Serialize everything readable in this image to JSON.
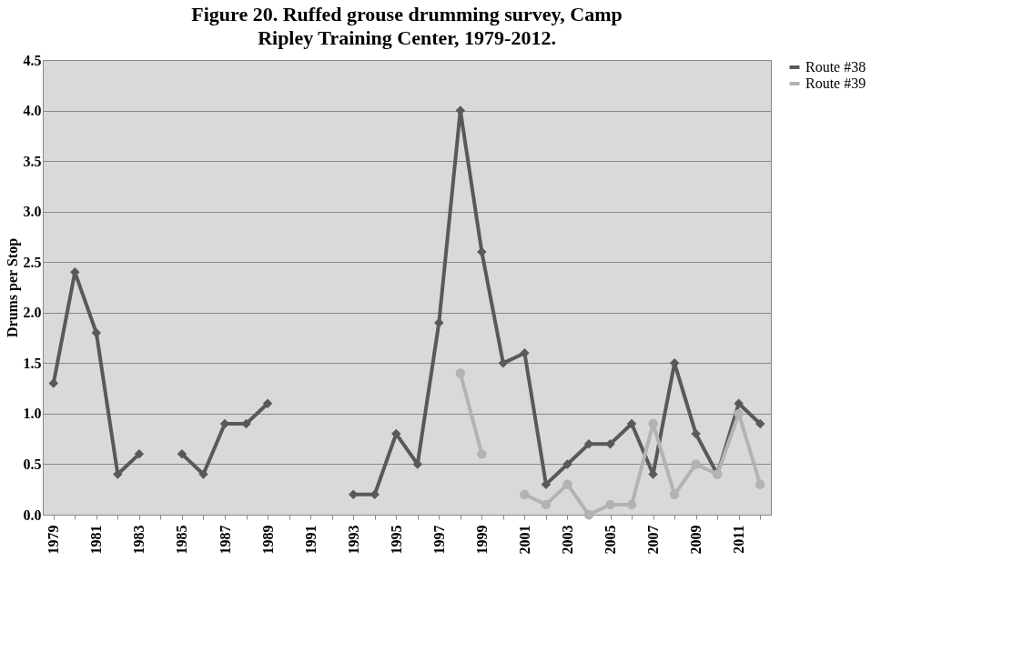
{
  "chart_data": {
    "type": "line",
    "title": "Figure 20.  Ruffed grouse drumming survey, Camp Ripley Training Center, 1979-2012.",
    "ylabel": "Drums per Stop",
    "categories": [
      "1979",
      null,
      "1981",
      null,
      "1983",
      null,
      "1985",
      null,
      "1987",
      null,
      "1989",
      null,
      "1991",
      null,
      "1993",
      null,
      "1995",
      null,
      "1997",
      null,
      "1999",
      null,
      "2001",
      null,
      "2003",
      null,
      "2005",
      null,
      "2007",
      null,
      "2009",
      null,
      "2011",
      null
    ],
    "series": [
      {
        "name": "Route #38",
        "color": "#595959",
        "marker": "diamond",
        "values": [
          1.3,
          2.4,
          1.8,
          0.4,
          0.6,
          null,
          0.6,
          0.4,
          0.9,
          0.9,
          1.1,
          null,
          null,
          null,
          0.2,
          0.2,
          0.8,
          0.5,
          1.9,
          4.0,
          2.6,
          1.5,
          1.6,
          0.3,
          0.5,
          0.7,
          0.7,
          0.9,
          0.4,
          1.5,
          0.8,
          0.4,
          1.1,
          0.9
        ]
      },
      {
        "name": "Route #39",
        "color": "#b3b3b3",
        "marker": "circle",
        "values": [
          null,
          null,
          null,
          null,
          null,
          null,
          null,
          null,
          null,
          null,
          null,
          null,
          null,
          null,
          null,
          null,
          null,
          null,
          null,
          1.4,
          0.6,
          null,
          0.2,
          0.1,
          0.3,
          0.0,
          0.1,
          0.1,
          0.9,
          0.2,
          0.5,
          0.4,
          1.0,
          0.3
        ]
      }
    ],
    "ylim": [
      0,
      4.5
    ],
    "yticks": [
      {
        "value": 0,
        "label": "0.0"
      },
      {
        "value": 0.5,
        "label": "0.5"
      },
      {
        "value": 1,
        "label": "1.0"
      },
      {
        "value": 1.5,
        "label": "1.5"
      },
      {
        "value": 2,
        "label": "2.0"
      },
      {
        "value": 2.5,
        "label": "2.5"
      },
      {
        "value": 3,
        "label": "3.0"
      },
      {
        "value": 3.5,
        "label": "3.5"
      },
      {
        "value": 4,
        "label": "4.0"
      },
      {
        "value": 4.5,
        "label": "4.5"
      }
    ],
    "grid": "y",
    "legend": "right",
    "line_style": "solid"
  }
}
